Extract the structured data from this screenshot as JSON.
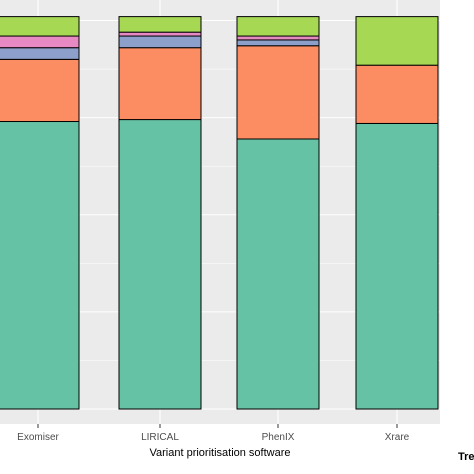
{
  "chart_data": {
    "type": "bar",
    "stacked": true,
    "categories": [
      "Exomiser",
      "LIRICAL",
      "PhenIX",
      "Xrare"
    ],
    "xlabel": "Variant prioritisation software",
    "ylabel": "",
    "ylim": [
      0,
      1
    ],
    "grid": true,
    "legend_title_partial": "Tre",
    "legend_placement": "right",
    "series": [
      {
        "color": "#66c2a5",
        "values": [
          0.74,
          0.745,
          0.695,
          0.735
        ]
      },
      {
        "color": "#fc8d62",
        "values": [
          0.16,
          0.185,
          0.24,
          0.15
        ]
      },
      {
        "color": "#8da0cb",
        "values": [
          0.03,
          0.03,
          0.015,
          0.0
        ]
      },
      {
        "color": "#e78ac3",
        "values": [
          0.03,
          0.01,
          0.01,
          0.0
        ]
      },
      {
        "color": "#a6d854",
        "values": [
          0.05,
          0.04,
          0.05,
          0.125
        ]
      }
    ]
  }
}
